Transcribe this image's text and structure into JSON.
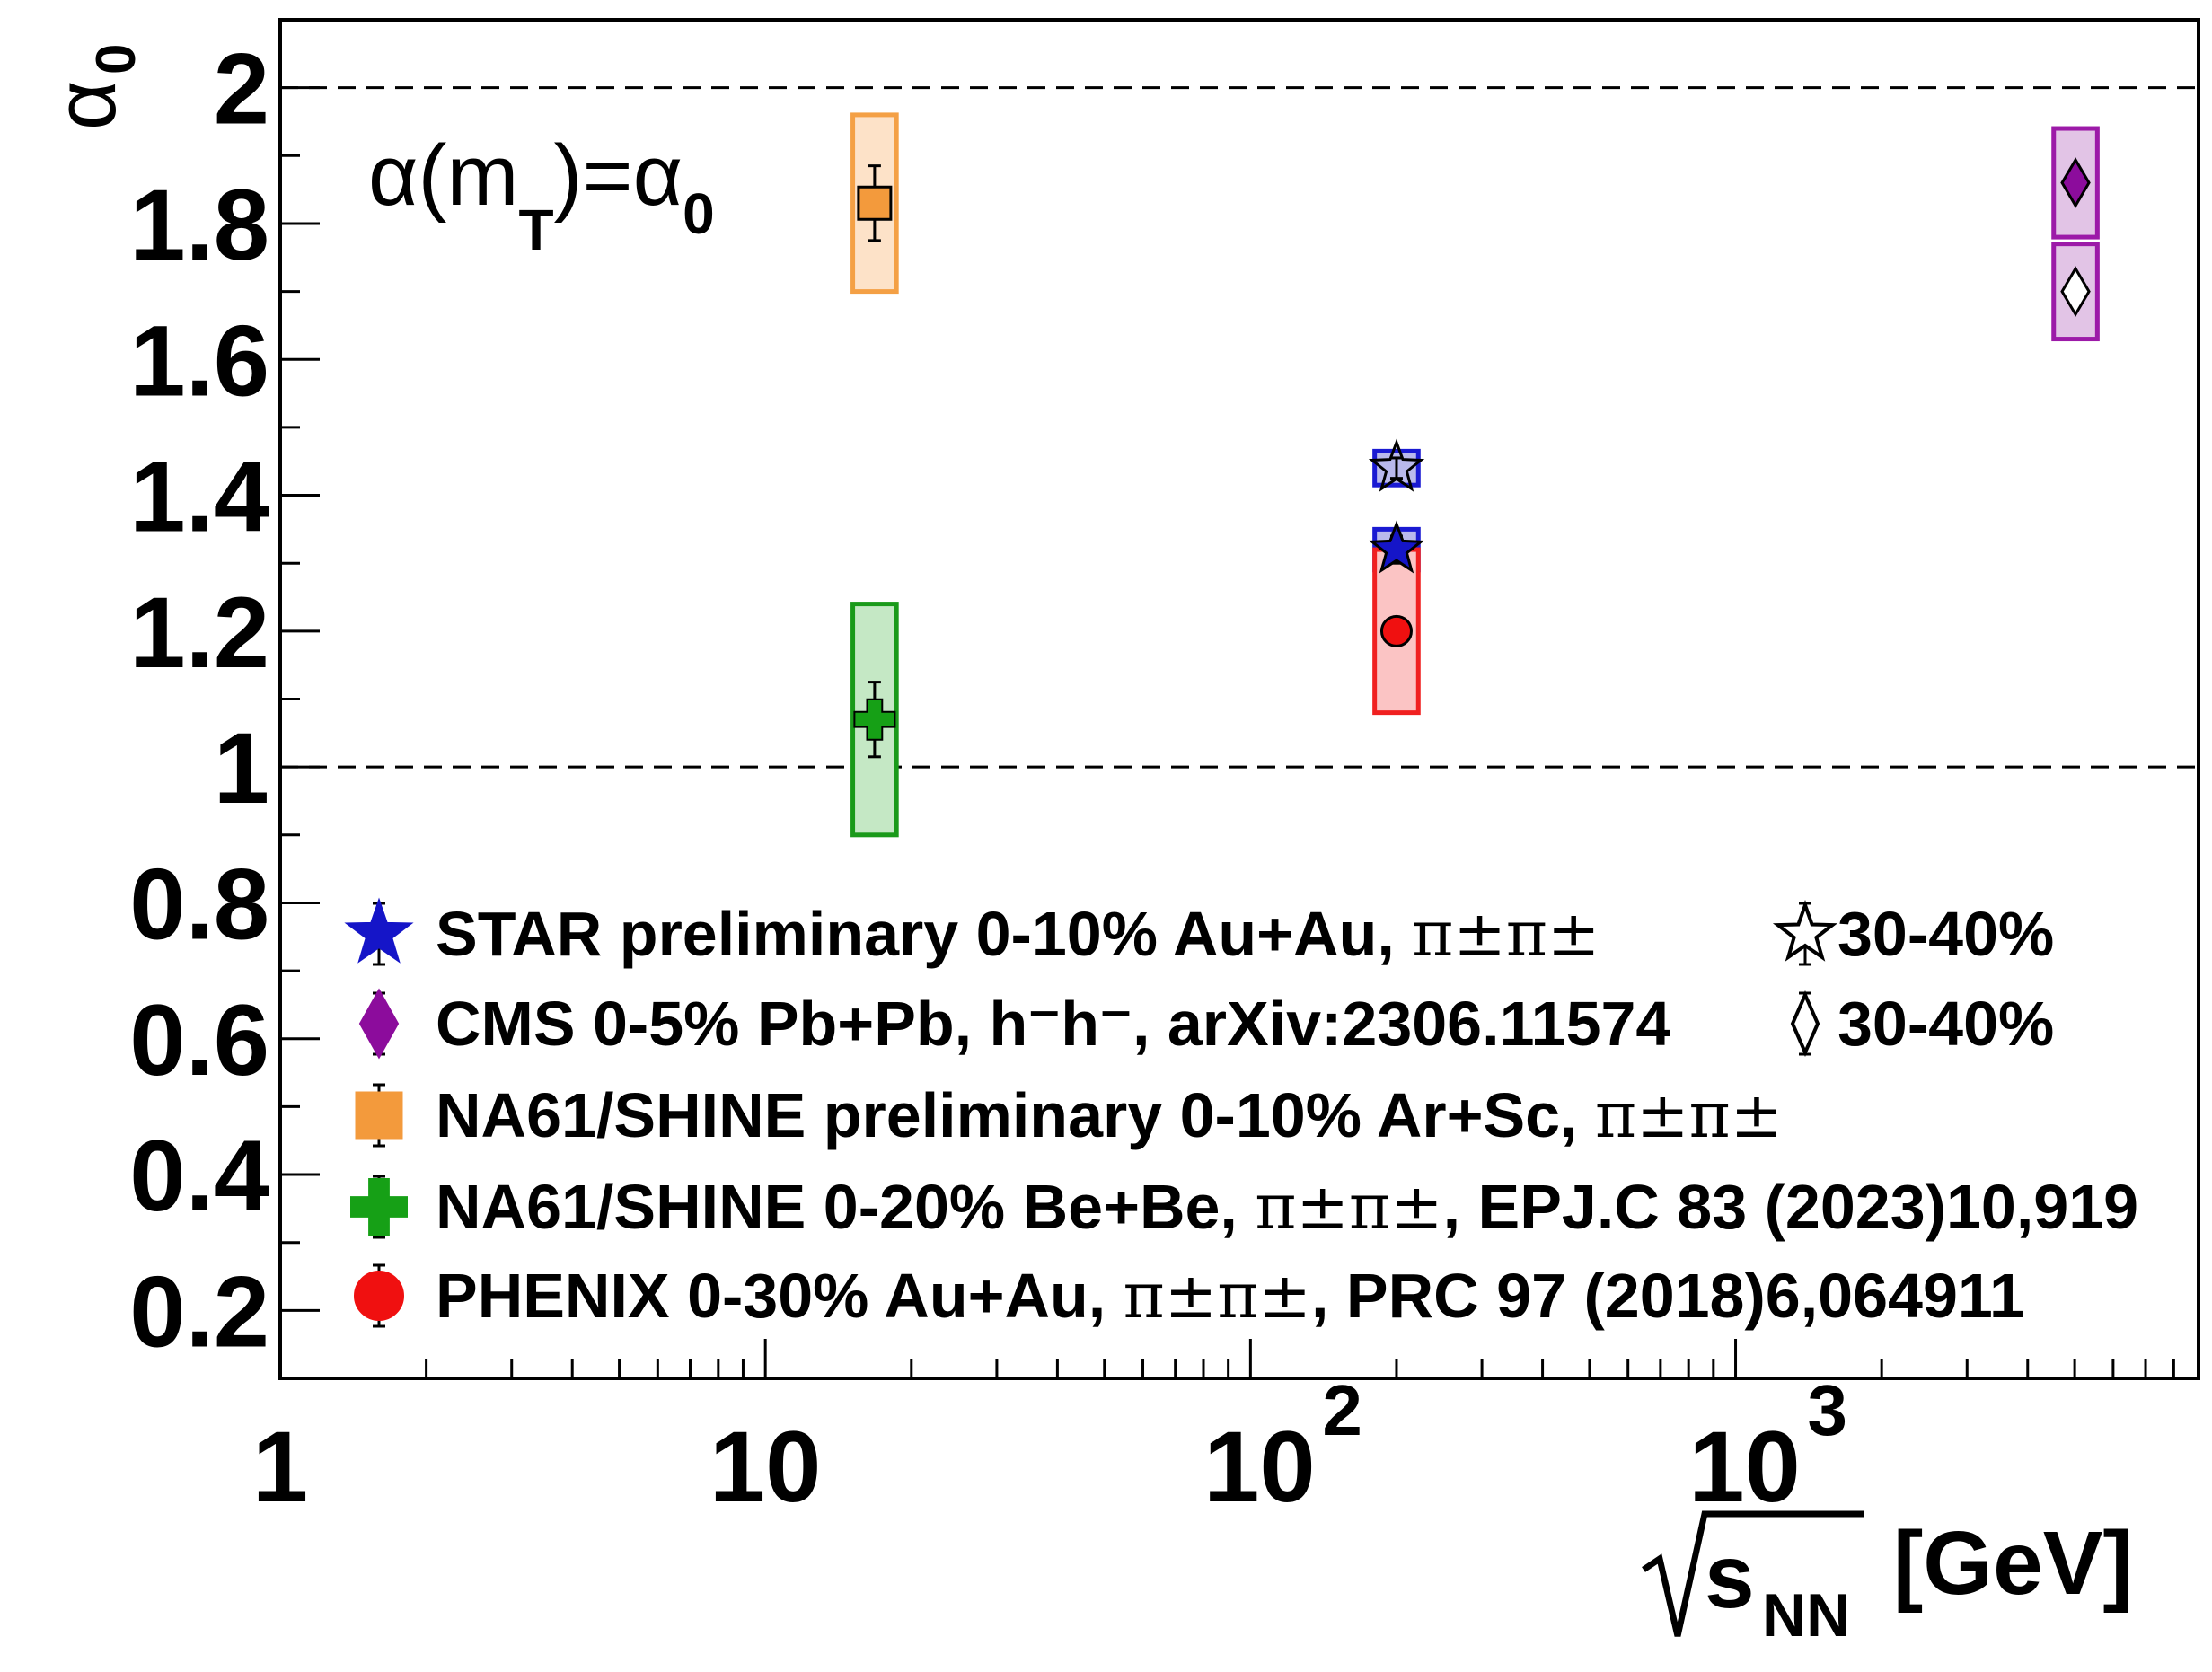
{
  "chart_data": {
    "type": "scatter",
    "x_scale": "log",
    "xlim": [
      1,
      9000
    ],
    "ylim": [
      0.1,
      2.1
    ],
    "ylabel": "α",
    "ylabel_sub": "0",
    "xlabel_sym": "s",
    "xlabel_sub": "NN",
    "xlabel_unit": "[GeV]",
    "annotation": {
      "main": "α(m",
      "sub": "T",
      "rest": ")=α",
      "sub2": "0"
    },
    "y_ticks": [
      "0.2",
      "0.4",
      "0.6",
      "0.8",
      "1",
      "1.2",
      "1.4",
      "1.6",
      "1.8",
      "2"
    ],
    "x_tick_labels": [
      {
        "value": 1,
        "base": "1",
        "exp": ""
      },
      {
        "value": 10,
        "base": "10",
        "exp": ""
      },
      {
        "value": 100,
        "base": "10",
        "exp": "2"
      },
      {
        "value": 1000,
        "base": "10",
        "exp": "3"
      }
    ],
    "reference_lines": [
      1,
      2
    ],
    "series": [
      {
        "key": "star_0_10",
        "marker": "star-filled",
        "color": "#1515c8",
        "box_fill": "#b9b9ec",
        "box_stroke": "#1a1ad2",
        "points": [
          {
            "x": 200,
            "y": 1.32,
            "stat": 0.02,
            "sys": 0.03,
            "box_w_dec": 0.09
          }
        ]
      },
      {
        "key": "star_30_40",
        "marker": "star-open",
        "color": "#1515c8",
        "box_fill": "#b9b9ec",
        "box_stroke": "#1a1ad2",
        "points": [
          {
            "x": 200,
            "y": 1.44,
            "stat": 0.015,
            "sys": 0.025,
            "box_w_dec": 0.09
          }
        ]
      },
      {
        "key": "cms_0_5",
        "marker": "diamond-filled",
        "color": "#8c0c9c",
        "box_fill": "#e2c4e6",
        "box_stroke": "#9c1aa8",
        "points": [
          {
            "x": 5020,
            "y": 1.86,
            "stat": 0.01,
            "sys": 0.08,
            "box_w_dec": 0.09
          }
        ]
      },
      {
        "key": "cms_30_40",
        "marker": "diamond-open",
        "color": "#8c0c9c",
        "box_fill": "#e2c4e6",
        "box_stroke": "#9c1aa8",
        "points": [
          {
            "x": 5020,
            "y": 1.7,
            "stat": 0.015,
            "sys": 0.07,
            "box_w_dec": 0.09
          }
        ]
      },
      {
        "key": "na61_arsc",
        "marker": "square",
        "color": "#f39a3c",
        "box_fill": "#fde2c8",
        "box_stroke": "#f4a045",
        "points": [
          {
            "x": 16.8,
            "y": 1.83,
            "stat": 0.055,
            "sys": 0.13,
            "box_w_dec": 0.09
          }
        ]
      },
      {
        "key": "na61_bebe",
        "marker": "cross",
        "color": "#16a016",
        "box_fill": "#c5e8c5",
        "box_stroke": "#1a9a1a",
        "points": [
          {
            "x": 16.8,
            "y": 1.07,
            "stat": 0.055,
            "sys": 0.17,
            "box_w_dec": 0.09
          }
        ]
      },
      {
        "key": "phenix",
        "marker": "circle",
        "color": "#f01010",
        "box_fill": "#fbc4c4",
        "box_stroke": "#f02020",
        "points": [
          {
            "x": 200,
            "y": 1.2,
            "stat": 0.015,
            "sys": 0.12,
            "box_w_dec": 0.09
          }
        ]
      }
    ],
    "legend": [
      {
        "marker": "star-filled",
        "color": "#1515c8",
        "text": "STAR preliminary 0-10% Au+Au, ",
        "greek": "π±π±",
        "extra": "",
        "side": {
          "marker": "star-open",
          "text": "30-40%"
        }
      },
      {
        "marker": "diamond-filled",
        "color": "#8c0c9c",
        "text": "CMS 0-5% Pb+Pb, h⁻h⁻, arXiv:2306.11574",
        "greek": "",
        "extra": "",
        "side": {
          "marker": "diamond-open",
          "text": "30-40%"
        }
      },
      {
        "marker": "square",
        "color": "#f39a3c",
        "text": "NA61/SHINE preliminary 0-10% Ar+Sc, ",
        "greek": "π±π±",
        "extra": ""
      },
      {
        "marker": "cross",
        "color": "#16a016",
        "text": "NA61/SHINE 0-20% Be+Be, ",
        "greek": "π±π±",
        "extra": ", EPJ.C 83 (2023)10,919"
      },
      {
        "marker": "circle",
        "color": "#f01010",
        "text": "PHENIX 0-30% Au+Au, ",
        "greek": "π±π±",
        "extra": ", PRC 97 (2018)6,064911"
      }
    ]
  }
}
